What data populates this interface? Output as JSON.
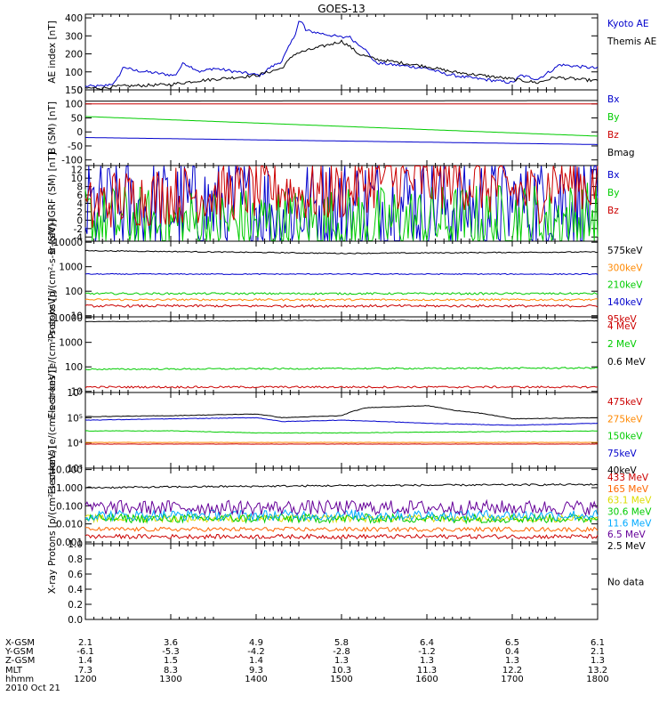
{
  "title": "GOES-13",
  "footer": {
    "row_labels": [
      "X-GSM",
      "Y-GSM",
      "Z-GSM",
      "MLT",
      "hhmm",
      "2010 Oct 21"
    ],
    "columns": [
      {
        "x": "2.1",
        "y": "-6.1",
        "z": "1.4",
        "mlt": "7.3",
        "hhmm": "1200"
      },
      {
        "x": "3.6",
        "y": "-5.3",
        "z": "1.5",
        "mlt": "8.3",
        "hhmm": "1300"
      },
      {
        "x": "4.9",
        "y": "-4.2",
        "z": "1.4",
        "mlt": "9.3",
        "hhmm": "1400"
      },
      {
        "x": "5.8",
        "y": "-2.8",
        "z": "1.3",
        "mlt": "10.3",
        "hhmm": "1500"
      },
      {
        "x": "6.4",
        "y": "-1.2",
        "z": "1.3",
        "mlt": "11.3",
        "hhmm": "1600"
      },
      {
        "x": "6.5",
        "y": "0.4",
        "z": "1.3",
        "mlt": "12.2",
        "hhmm": "1700"
      },
      {
        "x": "6.1",
        "y": "2.1",
        "z": "1.3",
        "mlt": "13.2",
        "hhmm": "1800"
      }
    ]
  },
  "chart_data": [
    {
      "type": "line",
      "ylabel": "AE index [nT]",
      "yscale": "linear",
      "ylim": [
        0,
        420
      ],
      "yticks": [
        {
          "v": 0,
          "t": "0"
        },
        {
          "v": 100,
          "t": "100"
        },
        {
          "v": 200,
          "t": "200"
        },
        {
          "v": 300,
          "t": "300"
        },
        {
          "v": 400,
          "t": "400"
        }
      ],
      "series": [
        {
          "name": "Kyoto AE",
          "color": "#0000cc",
          "noise": 0.02,
          "x": [
            1200,
            1220,
            1235,
            1245,
            1255,
            1305,
            1315,
            1335,
            1350,
            1405,
            1415,
            1430,
            1445,
            1450,
            1455,
            1458,
            1502,
            1508,
            1515,
            1525,
            1540,
            1600,
            1620,
            1645,
            1700,
            1710,
            1730,
            1750,
            1755,
            1800
          ],
          "y": [
            20,
            20,
            40,
            130,
            110,
            80,
            150,
            100,
            120,
            80,
            120,
            160,
            300,
            380,
            370,
            330,
            290,
            300,
            270,
            240,
            150,
            120,
            90,
            70,
            40,
            80,
            60,
            120,
            140,
            120
          ]
        },
        {
          "name": "Themis AE",
          "color": "#000000",
          "noise": 0.02,
          "x": [
            1200,
            1220,
            1240,
            1300,
            1330,
            1400,
            1430,
            1445,
            1500,
            1510,
            1520,
            1540,
            1600,
            1630,
            1700,
            1730,
            1750,
            1800
          ],
          "y": [
            10,
            10,
            20,
            30,
            50,
            80,
            120,
            200,
            270,
            240,
            200,
            170,
            130,
            100,
            60,
            40,
            70,
            50
          ]
        }
      ]
    },
    {
      "type": "line",
      "ylabel": "B (SM) [nT]",
      "yscale": "linear",
      "ylim": [
        -120,
        150
      ],
      "yticks": [
        {
          "v": -100,
          "t": "-100"
        },
        {
          "v": -50,
          "t": "-50"
        },
        {
          "v": 0,
          "t": "0"
        },
        {
          "v": 50,
          "t": "50"
        },
        {
          "v": 100,
          "t": "100"
        },
        {
          "v": 150,
          "t": "150"
        }
      ],
      "series": [
        {
          "name": "Bx",
          "color": "#0000cc",
          "x": [
            1200,
            1800
          ],
          "y": [
            -20,
            -45
          ]
        },
        {
          "name": "By",
          "color": "#00cc00",
          "x": [
            1200,
            1800
          ],
          "y": [
            55,
            -15
          ]
        },
        {
          "name": "Bz",
          "color": "#cc0000",
          "x": [
            1200,
            1800
          ],
          "y": [
            100,
            100
          ]
        },
        {
          "name": "Bmag",
          "color": "#000000",
          "x": [
            1200,
            1800
          ],
          "y": [
            110,
            112
          ]
        }
      ]
    },
    {
      "type": "line",
      "ylabel": "B (SM)-IGRF (SM) [nT]",
      "yscale": "linear",
      "ylim": [
        -5,
        13
      ],
      "yticks": [
        {
          "v": -4,
          "t": "-4"
        },
        {
          "v": -2,
          "t": "-2"
        },
        {
          "v": 0,
          "t": "0"
        },
        {
          "v": 2,
          "t": "2"
        },
        {
          "v": 4,
          "t": "4"
        },
        {
          "v": 6,
          "t": "6"
        },
        {
          "v": 8,
          "t": "8"
        },
        {
          "v": 10,
          "t": "10"
        },
        {
          "v": 12,
          "t": "12"
        }
      ],
      "series": [
        {
          "name": "Bx",
          "color": "#0000cc",
          "noise": 0.7,
          "x": [
            1200,
            1300,
            1400,
            1500,
            1600,
            1700,
            1745,
            1800
          ],
          "y": [
            2,
            3,
            3,
            3,
            4,
            3,
            5,
            3
          ]
        },
        {
          "name": "By",
          "color": "#00cc00",
          "noise": 0.5,
          "x": [
            1200,
            1300,
            1400,
            1500,
            1600,
            1700,
            1800
          ],
          "y": [
            0,
            -1,
            -1,
            -1,
            -0.5,
            0,
            0.5
          ]
        },
        {
          "name": "Bz",
          "color": "#cc0000",
          "noise": 0.4,
          "x": [
            1200,
            1230,
            1300,
            1400,
            1430,
            1450,
            1500,
            1545,
            1600,
            1630,
            1700,
            1730,
            1750,
            1800
          ],
          "y": [
            2,
            5,
            6,
            7,
            8,
            6,
            7,
            10,
            9,
            10,
            7,
            6,
            10,
            8
          ]
        }
      ]
    },
    {
      "type": "line",
      "ylabel": "Protons [p/(cm²-s-sr-keV)]",
      "yscale": "log",
      "ylim": [
        9,
        11000
      ],
      "yticks": [
        {
          "v": 10,
          "t": "10"
        },
        {
          "v": 100,
          "t": "100"
        },
        {
          "v": 1000,
          "t": "1000"
        },
        {
          "v": 10000,
          "t": "10000"
        }
      ],
      "series": [
        {
          "name": "575keV",
          "color": "#000000",
          "noise": 0.02,
          "x": [
            1200,
            1500,
            1800
          ],
          "y": [
            4500,
            3500,
            4000
          ]
        },
        {
          "name": "300keV",
          "color": "#ff8800",
          "noise": 0.04,
          "x": [
            1200,
            1800
          ],
          "y": [
            45,
            45
          ]
        },
        {
          "name": "210keV",
          "color": "#00cc00",
          "noise": 0.04,
          "x": [
            1200,
            1800
          ],
          "y": [
            80,
            80
          ]
        },
        {
          "name": "140keV",
          "color": "#0000cc",
          "noise": 0.02,
          "x": [
            1200,
            1800
          ],
          "y": [
            500,
            500
          ]
        },
        {
          "name": "95keV",
          "color": "#cc0000",
          "noise": 0.05,
          "x": [
            1200,
            1800
          ],
          "y": [
            25,
            25
          ]
        }
      ]
    },
    {
      "type": "line",
      "ylabel": "Electrons [e/(cm²-s-sr-keV)]",
      "yscale": "log",
      "ylim": [
        9,
        11000
      ],
      "yticks": [
        {
          "v": 10,
          "t": "10"
        },
        {
          "v": 100,
          "t": "100"
        },
        {
          "v": 1000,
          "t": "1000"
        },
        {
          "v": 10000,
          "t": "10000"
        }
      ],
      "series": [
        {
          "name": "4 MeV",
          "color": "#cc0000",
          "noise": 0.04,
          "x": [
            1200,
            1800
          ],
          "y": [
            15,
            15
          ]
        },
        {
          "name": "2 MeV",
          "color": "#00cc00",
          "noise": 0.03,
          "x": [
            1200,
            1800
          ],
          "y": [
            80,
            90
          ]
        },
        {
          "name": "0.6 MeV",
          "color": "#000000",
          "noise": 0.01,
          "x": [
            1200,
            1500,
            1800
          ],
          "y": [
            7000,
            8000,
            7500
          ]
        }
      ]
    },
    {
      "type": "line",
      "ylabel": "Electrons [e/(cm²-s-sr-keV)]",
      "yscale": "log",
      "ylim": [
        1000,
        1000000
      ],
      "yticks": [
        {
          "v": 1000,
          "t": "10³"
        },
        {
          "v": 10000,
          "t": "10⁴"
        },
        {
          "v": 100000,
          "t": "10⁵"
        },
        {
          "v": 1000000,
          "t": "10⁶"
        }
      ],
      "series": [
        {
          "name": "475keV",
          "color": "#cc0000",
          "noise": 0.005,
          "x": [
            1200,
            1800
          ],
          "y": [
            9000,
            9000
          ]
        },
        {
          "name": "275keV",
          "color": "#ff8800",
          "noise": 0.005,
          "x": [
            1200,
            1800
          ],
          "y": [
            10500,
            10500
          ]
        },
        {
          "name": "150keV",
          "color": "#00cc00",
          "noise": 0.01,
          "x": [
            1200,
            1300,
            1400,
            1500,
            1800
          ],
          "y": [
            30000,
            30000,
            25000,
            25000,
            30000
          ]
        },
        {
          "name": "75keV",
          "color": "#0000cc",
          "noise": 0.01,
          "x": [
            1200,
            1300,
            1400,
            1430,
            1500,
            1600,
            1700,
            1800
          ],
          "y": [
            80000,
            90000,
            100000,
            70000,
            80000,
            60000,
            50000,
            60000
          ]
        },
        {
          "name": "40keV",
          "color": "#000000",
          "noise": 0.01,
          "x": [
            1200,
            1300,
            1400,
            1430,
            1500,
            1530,
            1600,
            1630,
            1700,
            1800
          ],
          "y": [
            110000,
            120000,
            140000,
            100000,
            120000,
            250000,
            300000,
            200000,
            90000,
            100000
          ]
        }
      ]
    },
    {
      "type": "line",
      "ylabel": "Protons [p/(cm²-s-sr-keV)]",
      "yscale": "log",
      "ylim": [
        0.0008,
        12
      ],
      "yticks": [
        {
          "v": 0.001,
          "t": "0.001"
        },
        {
          "v": 0.01,
          "t": "0.010"
        },
        {
          "v": 0.1,
          "t": "0.100"
        },
        {
          "v": 1,
          "t": "1.000"
        },
        {
          "v": 10,
          "t": "10.000"
        }
      ],
      "series": [
        {
          "name": "433 MeV",
          "color": "#cc0000",
          "noise": 0.12,
          "x": [
            1200,
            1800
          ],
          "y": [
            0.002,
            0.002
          ]
        },
        {
          "name": "165 MeV",
          "color": "#ff6600",
          "noise": 0.12,
          "x": [
            1200,
            1800
          ],
          "y": [
            0.005,
            0.005
          ]
        },
        {
          "name": "63.1 MeV",
          "color": "#dddd00",
          "noise": 0.2,
          "x": [
            1200,
            1800
          ],
          "y": [
            0.02,
            0.02
          ]
        },
        {
          "name": "30.6 MeV",
          "color": "#00cc00",
          "noise": 0.25,
          "x": [
            1200,
            1800
          ],
          "y": [
            0.02,
            0.02
          ]
        },
        {
          "name": "11.6 MeV",
          "color": "#00aaff",
          "noise": 0.3,
          "x": [
            1200,
            1800
          ],
          "y": [
            0.03,
            0.03
          ]
        },
        {
          "name": "6.5 MeV",
          "color": "#660099",
          "noise": 0.4,
          "x": [
            1200,
            1800
          ],
          "y": [
            0.08,
            0.08
          ]
        },
        {
          "name": "2.5 MeV",
          "color": "#000000",
          "noise": 0.05,
          "x": [
            1200,
            1500,
            1800
          ],
          "y": [
            1,
            1.3,
            1.5
          ]
        }
      ]
    },
    {
      "type": "line",
      "ylabel": "X-ray",
      "yscale": "linear",
      "ylim": [
        0,
        1
      ],
      "yticks": [
        {
          "v": 0,
          "t": "0.0"
        },
        {
          "v": 0.2,
          "t": "0.2"
        },
        {
          "v": 0.4,
          "t": "0.4"
        },
        {
          "v": 0.6,
          "t": "0.6"
        },
        {
          "v": 0.8,
          "t": "0.8"
        },
        {
          "v": 1.0,
          "t": "1.0"
        }
      ],
      "series": [],
      "annotation": "No data"
    }
  ]
}
